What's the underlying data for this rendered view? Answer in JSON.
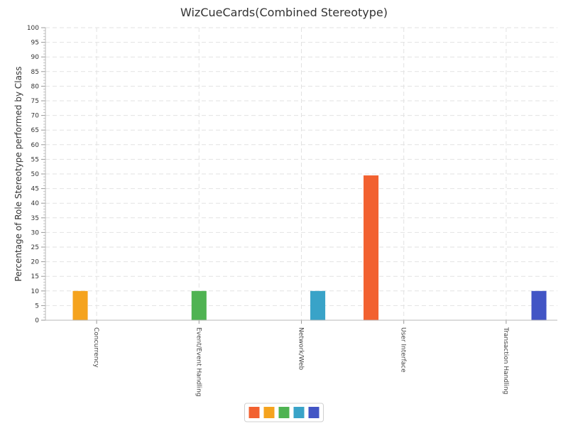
{
  "chart_data": {
    "type": "bar",
    "title": "WizCueCards(Combined Stereotype)",
    "xlabel": "",
    "ylabel": "Percentage of Role Stereotype performed by Class",
    "ylim": [
      0,
      100
    ],
    "y_major_step": 5,
    "y_minor_step": 1,
    "grid": true,
    "legend_position": "bottom-center",
    "categories": [
      "Concurrency",
      "Event/Event Handling",
      "Network/Web",
      "User Interface",
      "Transaction Handling"
    ],
    "series": [
      {
        "color": "#f26130",
        "values": [
          0,
          0,
          0,
          49.5,
          0
        ]
      },
      {
        "color": "#f5a31e",
        "values": [
          10,
          0,
          0,
          0,
          0
        ]
      },
      {
        "color": "#4fb352",
        "values": [
          0,
          10,
          0,
          0,
          0
        ]
      },
      {
        "color": "#39a3c8",
        "values": [
          0,
          0,
          10,
          0,
          0
        ]
      },
      {
        "color": "#4255c5",
        "values": [
          0,
          0,
          0,
          0,
          10
        ]
      }
    ]
  }
}
